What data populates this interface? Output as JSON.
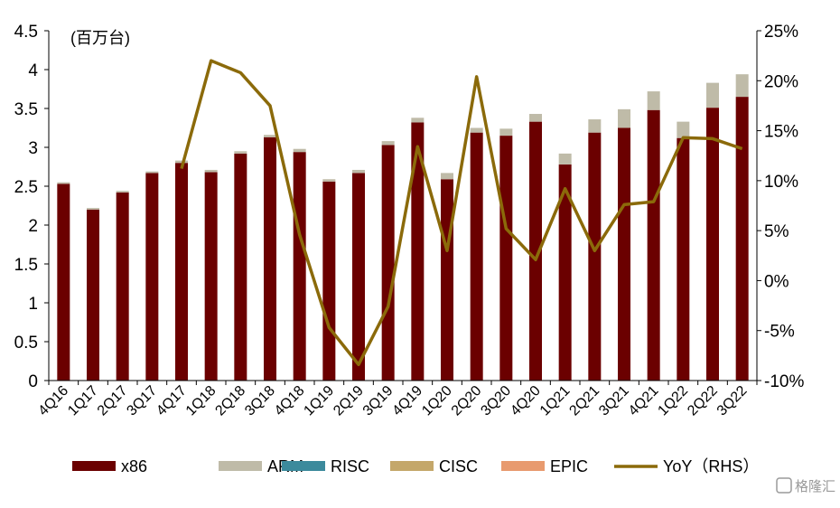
{
  "chart_data": {
    "type": "bar",
    "stacked": true,
    "unit_label": "(百万台)",
    "categories": [
      "4Q16",
      "1Q17",
      "2Q17",
      "3Q17",
      "4Q17",
      "1Q18",
      "2Q18",
      "3Q18",
      "4Q18",
      "1Q19",
      "2Q19",
      "3Q19",
      "4Q19",
      "1Q20",
      "2Q20",
      "3Q20",
      "4Q20",
      "1Q21",
      "2Q21",
      "3Q21",
      "4Q21",
      "1Q22",
      "2Q22",
      "3Q22"
    ],
    "series": [
      {
        "name": "x86",
        "type": "bar",
        "axis": "left",
        "color": "#6B0000",
        "values": [
          2.53,
          2.2,
          2.42,
          2.67,
          2.8,
          2.68,
          2.92,
          3.13,
          2.94,
          2.56,
          2.67,
          3.03,
          3.32,
          2.59,
          3.19,
          3.15,
          3.33,
          2.78,
          3.19,
          3.25,
          3.48,
          3.12,
          3.51,
          3.65
        ]
      },
      {
        "name": "ARM",
        "type": "bar",
        "axis": "left",
        "color": "#BFBBA8",
        "values": [
          0.02,
          0.02,
          0.02,
          0.02,
          0.03,
          0.03,
          0.03,
          0.03,
          0.04,
          0.03,
          0.04,
          0.05,
          0.06,
          0.08,
          0.06,
          0.09,
          0.1,
          0.14,
          0.17,
          0.24,
          0.24,
          0.21,
          0.32,
          0.29
        ]
      },
      {
        "name": "RISC",
        "type": "bar",
        "axis": "left",
        "color": "#3C8A9C",
        "values": [
          0,
          0,
          0,
          0,
          0,
          0,
          0,
          0,
          0,
          0,
          0,
          0,
          0,
          0,
          0,
          0,
          0,
          0,
          0,
          0,
          0,
          0,
          0,
          0
        ]
      },
      {
        "name": "CISC",
        "type": "bar",
        "axis": "left",
        "color": "#C4A76A",
        "values": [
          0,
          0,
          0,
          0,
          0,
          0,
          0,
          0,
          0,
          0,
          0,
          0,
          0,
          0,
          0,
          0,
          0,
          0,
          0,
          0,
          0,
          0,
          0,
          0
        ]
      },
      {
        "name": "EPIC",
        "type": "bar",
        "axis": "left",
        "color": "#E89A6E",
        "values": [
          0,
          0,
          0,
          0,
          0,
          0,
          0,
          0,
          0,
          0,
          0,
          0,
          0,
          0,
          0,
          0,
          0,
          0,
          0,
          0,
          0,
          0,
          0,
          0
        ]
      },
      {
        "name": "YoY（RHS）",
        "type": "line",
        "axis": "right",
        "color": "#8B6A0A",
        "values": [
          null,
          null,
          null,
          null,
          11.2,
          22.0,
          20.8,
          17.5,
          4.6,
          -4.7,
          -8.4,
          -2.6,
          13.4,
          3.0,
          20.4,
          5.2,
          2.1,
          9.2,
          3.0,
          7.6,
          7.9,
          14.3,
          14.2,
          13.2
        ]
      }
    ],
    "left_axis": {
      "min": 0,
      "max": 4.5,
      "ticks": [
        0,
        0.5,
        1,
        1.5,
        2,
        2.5,
        3,
        3.5,
        4,
        4.5
      ],
      "tick_labels": [
        "0",
        "0.5",
        "1",
        "1.5",
        "2",
        "2.5",
        "3",
        "3.5",
        "4",
        "4.5"
      ]
    },
    "right_axis": {
      "min": -10,
      "max": 25,
      "ticks": [
        -10,
        -5,
        0,
        5,
        10,
        15,
        20,
        25
      ],
      "tick_labels": [
        "-10%",
        "-5%",
        "0%",
        "5%",
        "10%",
        "15%",
        "20%",
        "25%"
      ]
    },
    "legend_position": "bottom",
    "grid": false
  },
  "watermark": "格隆汇"
}
